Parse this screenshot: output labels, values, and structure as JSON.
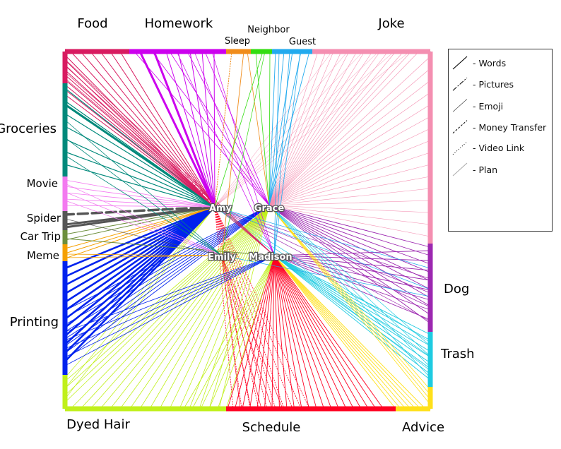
{
  "people": [
    {
      "id": "amy",
      "name": "Amy"
    },
    {
      "id": "grace",
      "name": "Grace"
    },
    {
      "id": "emily",
      "name": "Emily"
    },
    {
      "id": "madison",
      "name": "Madison"
    }
  ],
  "topics": {
    "top": [
      {
        "id": "food",
        "label": "Food",
        "color": "#d81b60"
      },
      {
        "id": "homework",
        "label": "Homework",
        "color": "#cc00ee"
      },
      {
        "id": "sleep",
        "label": "Sleep",
        "color": "#f08c1a"
      },
      {
        "id": "neighbor",
        "label": "Neighbor",
        "color": "#33dd11"
      },
      {
        "id": "guest",
        "label": "Guest",
        "color": "#22aaee"
      },
      {
        "id": "joke",
        "label": "Joke",
        "color": "#f48fb1"
      }
    ],
    "right": [
      {
        "id": "joke_r",
        "label": "",
        "color": "#f48fb1"
      },
      {
        "id": "dog",
        "label": "Dog",
        "color": "#9c27b0"
      },
      {
        "id": "trash",
        "label": "Trash",
        "color": "#1ecbe1"
      },
      {
        "id": "advice",
        "label": "Advice",
        "color": "#ffe01a"
      }
    ],
    "bottom": [
      {
        "id": "dyed_hair",
        "label": "Dyed Hair",
        "color": "#c0f01a"
      },
      {
        "id": "schedule",
        "label": "Schedule",
        "color": "#ff0022"
      },
      {
        "id": "advice_b",
        "label": "",
        "color": "#ffe01a"
      }
    ],
    "left": [
      {
        "id": "food_l",
        "label": "",
        "color": "#d81b60"
      },
      {
        "id": "groceries",
        "label": "Groceries",
        "color": "#00897b"
      },
      {
        "id": "movie",
        "label": "Movie",
        "color": "#f37af0"
      },
      {
        "id": "spider",
        "label": "Spider",
        "color": "#555555"
      },
      {
        "id": "car_trip",
        "label": "Car Trip",
        "color": "#6d8f3c"
      },
      {
        "id": "meme",
        "label": "Meme",
        "color": "#f5a000"
      },
      {
        "id": "printing",
        "label": "Printing",
        "color": "#0022ee"
      },
      {
        "id": "dyed_hair_l",
        "label": "",
        "color": "#c0f01a"
      }
    ]
  },
  "legend": [
    {
      "label": "- Words",
      "style": "solid"
    },
    {
      "label": "- Pictures",
      "style": "dashdot"
    },
    {
      "label": "- Emoji",
      "style": "thin"
    },
    {
      "label": "- Money Transfer",
      "style": "dashed"
    },
    {
      "label": "- Video Link",
      "style": "dotted"
    },
    {
      "label": "- Plan",
      "style": "light"
    }
  ]
}
